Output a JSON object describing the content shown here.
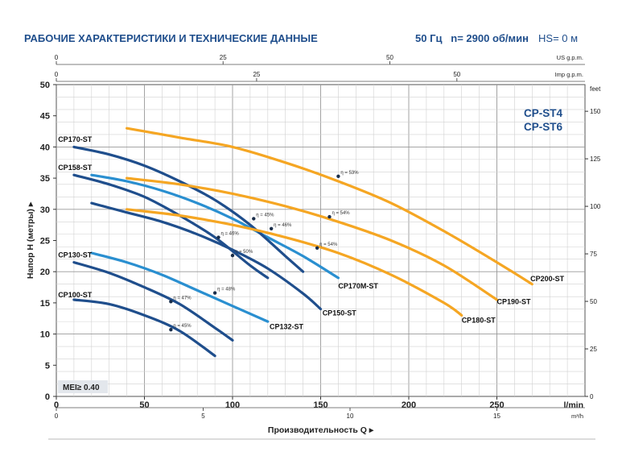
{
  "header": {
    "title": "РАБОЧИЕ ХАРАКТЕРИСТИКИ И ТЕХНИЧЕСКИЕ ДАННЫЕ",
    "frequency": "50 Гц",
    "speed": "n= 2900 об/мин",
    "hs": "HS= 0 м"
  },
  "colors": {
    "dark_blue": "#1f4e8c",
    "light_blue": "#2a8fd0",
    "orange": "#f5a623",
    "grid": "#bfbfbf"
  },
  "chart_data": {
    "type": "line",
    "model_label": [
      "CP-ST4",
      "CP-ST6"
    ],
    "mei_label": "MEI≥ 0.40",
    "grid": true,
    "xlabel": "Производительность Q",
    "ylabel": "Напор H (метры)",
    "x_unit": "l/min",
    "xlim": [
      0,
      300
    ],
    "ylim": [
      0,
      50
    ],
    "x_ticks": [
      "0",
      "50",
      "100",
      "150",
      "200",
      "250"
    ],
    "y_ticks": [
      "0",
      "5",
      "10",
      "15",
      "20",
      "25",
      "30",
      "35",
      "40",
      "45",
      "50"
    ],
    "top_axis_us": {
      "unit": "US g.p.m.",
      "ticks": [
        0,
        25,
        50
      ]
    },
    "top_axis_imp": {
      "unit": "Imp g.p.m.",
      "ticks": [
        0,
        25,
        50
      ]
    },
    "right_axis": {
      "unit": "feet",
      "ticks": [
        0,
        25,
        50,
        75,
        100,
        125,
        150
      ]
    },
    "bottom_axis_m3h": {
      "unit": "m³/h",
      "ticks": [
        0,
        5,
        10,
        15
      ]
    },
    "series": [
      {
        "name": "CP100-ST",
        "color": "dark_blue",
        "x": [
          10,
          30,
          50,
          70,
          90
        ],
        "y": [
          15.5,
          14.8,
          13.0,
          10.5,
          6.5
        ],
        "eta": {
          "text": "η = 45%",
          "x": 65,
          "y": 10.7
        }
      },
      {
        "name": "CP130-ST",
        "color": "dark_blue",
        "x": [
          10,
          30,
          50,
          70,
          90,
          100
        ],
        "y": [
          21.5,
          19.8,
          17.5,
          14.8,
          11.0,
          9.0
        ],
        "eta": {
          "text": "η = 47%",
          "x": 65,
          "y": 15.2
        }
      },
      {
        "name": "CP132-ST",
        "color": "light_blue",
        "x": [
          20,
          40,
          60,
          80,
          100,
          120
        ],
        "y": [
          23.0,
          21.5,
          19.5,
          17.0,
          14.5,
          12.0
        ],
        "eta": {
          "text": "η = 48%",
          "x": 90,
          "y": 16.6
        }
      },
      {
        "name": "CP150-ST",
        "color": "dark_blue",
        "x": [
          20,
          40,
          60,
          80,
          100,
          120,
          140,
          150
        ],
        "y": [
          31.0,
          29.5,
          28.0,
          26.0,
          23.5,
          20.5,
          16.5,
          14.0
        ],
        "eta": {
          "text": "η = 50%",
          "x": 100,
          "y": 22.6
        }
      },
      {
        "name": "CP158-ST",
        "color": "dark_blue",
        "x": [
          10,
          30,
          50,
          70,
          90,
          110,
          120
        ],
        "y": [
          35.5,
          34.0,
          32.0,
          29.0,
          25.5,
          21.0,
          19.0
        ],
        "eta": {
          "text": "η = 46%",
          "x": 92,
          "y": 25.5
        }
      },
      {
        "name": "CP170M-ST",
        "color": "light_blue",
        "x": [
          20,
          40,
          60,
          80,
          100,
          120,
          140,
          160
        ],
        "y": [
          35.5,
          34.5,
          33.0,
          31.0,
          28.5,
          25.5,
          22.5,
          19.0
        ],
        "eta": {
          "text": "η = 46%",
          "x": 122,
          "y": 26.9
        }
      },
      {
        "name": "CP170-ST",
        "color": "dark_blue",
        "x": [
          10,
          30,
          50,
          70,
          90,
          110,
          130,
          140
        ],
        "y": [
          40.0,
          38.8,
          37.0,
          34.5,
          31.5,
          27.5,
          22.5,
          20.0
        ],
        "eta": {
          "text": "η = 45%",
          "x": 112,
          "y": 28.5
        }
      },
      {
        "name": "CP180-ST",
        "color": "orange",
        "x": [
          40,
          70,
          100,
          130,
          160,
          190,
          220,
          230
        ],
        "y": [
          30.0,
          29.0,
          27.5,
          25.5,
          23.0,
          19.5,
          15.0,
          13.0
        ],
        "eta": {
          "text": "η = 54%",
          "x": 148,
          "y": 23.8
        }
      },
      {
        "name": "CP190-ST",
        "color": "orange",
        "x": [
          40,
          70,
          100,
          130,
          160,
          190,
          220,
          250
        ],
        "y": [
          35.0,
          34.0,
          32.5,
          30.5,
          28.0,
          25.0,
          21.0,
          15.5
        ],
        "eta": {
          "text": "η = 54%",
          "x": 155,
          "y": 28.8
        }
      },
      {
        "name": "CP200-ST",
        "color": "orange",
        "x": [
          40,
          70,
          100,
          130,
          160,
          190,
          220,
          250,
          270
        ],
        "y": [
          43.0,
          41.5,
          40.0,
          37.5,
          34.5,
          31.0,
          26.5,
          21.5,
          18.0
        ],
        "eta": {
          "text": "η = 53%",
          "x": 160,
          "y": 35.3
        }
      }
    ]
  }
}
